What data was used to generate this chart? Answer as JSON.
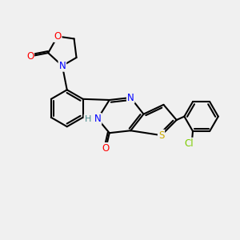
{
  "background_color": "#f0f0f0",
  "atom_colors": {
    "N": "#0000ff",
    "O": "#ff0000",
    "S": "#ccaa00",
    "Cl": "#7ccc00",
    "C": "#000000",
    "H": "#4a8a8a"
  },
  "bond_color": "#000000",
  "bond_lw": 1.5
}
